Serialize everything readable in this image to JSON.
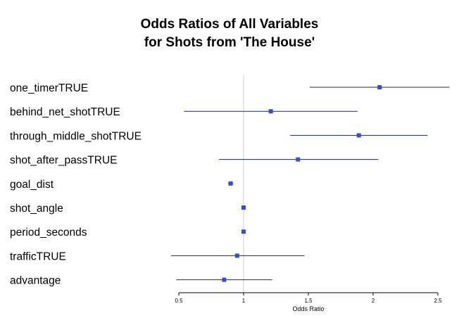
{
  "chart_data": {
    "type": "forest",
    "title_lines": [
      "Odds Ratios of All Variables",
      "for Shots from 'The House'"
    ],
    "xlabel": "Odds Ratio",
    "xlim": [
      0.5,
      2.5
    ],
    "xticks": [
      0.5,
      1,
      1.5,
      2,
      2.5
    ],
    "xtick_labels": [
      "0.5",
      "1",
      "1.5",
      "2",
      "2.5"
    ],
    "reference_line": 1,
    "colors": {
      "point": "#3050d0",
      "interval": "#1a237e",
      "reference": "#cccccc"
    },
    "rows": [
      {
        "label": "one_timerTRUE",
        "estimate": 2.05,
        "low": 1.51,
        "high": 2.59
      },
      {
        "label": "behind_net_shotTRUE",
        "estimate": 1.21,
        "low": 0.54,
        "high": 1.88
      },
      {
        "label": "through_middle_shotTRUE",
        "estimate": 1.89,
        "low": 1.36,
        "high": 2.42
      },
      {
        "label": "shot_after_passTRUE",
        "estimate": 1.42,
        "low": 0.81,
        "high": 2.04
      },
      {
        "label": "goal_dist",
        "estimate": 0.9,
        "low": 0.88,
        "high": 0.92
      },
      {
        "label": "shot_angle",
        "estimate": 1.0,
        "low": 0.99,
        "high": 1.01
      },
      {
        "label": "period_seconds",
        "estimate": 1.0,
        "low": 1.0,
        "high": 1.0
      },
      {
        "label": "trafficTRUE",
        "estimate": 0.95,
        "low": 0.44,
        "high": 1.47
      },
      {
        "label": "advantage",
        "estimate": 0.85,
        "low": 0.48,
        "high": 1.22
      }
    ]
  }
}
